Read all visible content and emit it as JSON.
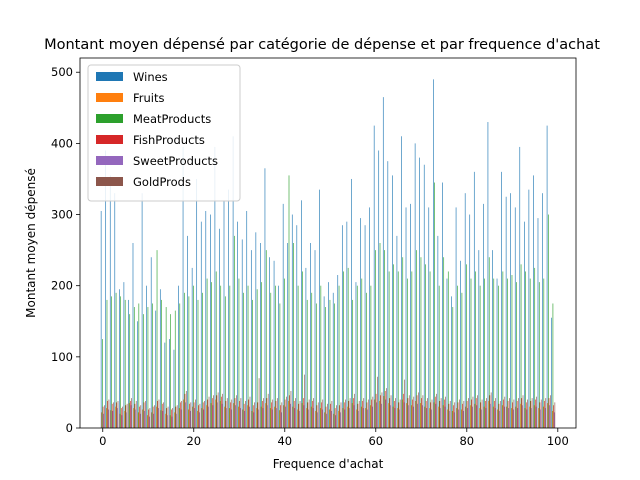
{
  "chart_data": {
    "type": "bar",
    "title": "Montant moyen dépensé par catégorie de dépense et par frequence d'achat",
    "xlabel": "Frequence d'achat",
    "ylabel": "Montant moyen dépensé",
    "xlim": [
      -5,
      104
    ],
    "ylim": [
      0,
      520
    ],
    "xticks": [
      0,
      20,
      40,
      60,
      80,
      100
    ],
    "yticks": [
      0,
      100,
      200,
      300,
      400,
      500
    ],
    "grid": false,
    "legend_position": "top-left",
    "x": [
      0,
      1,
      2,
      3,
      4,
      5,
      6,
      7,
      8,
      9,
      10,
      11,
      12,
      13,
      14,
      15,
      16,
      17,
      18,
      19,
      20,
      21,
      22,
      23,
      24,
      25,
      26,
      27,
      28,
      29,
      30,
      31,
      32,
      33,
      34,
      35,
      36,
      37,
      38,
      39,
      40,
      41,
      42,
      43,
      44,
      45,
      46,
      47,
      48,
      49,
      50,
      51,
      52,
      53,
      54,
      55,
      56,
      57,
      58,
      59,
      60,
      61,
      62,
      63,
      64,
      65,
      66,
      67,
      68,
      69,
      70,
      71,
      72,
      73,
      74,
      75,
      76,
      77,
      78,
      79,
      80,
      81,
      82,
      83,
      84,
      85,
      86,
      87,
      88,
      89,
      90,
      91,
      92,
      93,
      94,
      95,
      96,
      97,
      98,
      99
    ],
    "series": [
      {
        "name": "Wines",
        "color": "#1f77b4",
        "values": [
          305,
          390,
          355,
          330,
          195,
          205,
          180,
          260,
          150,
          330,
          200,
          240,
          165,
          195,
          120,
          125,
          110,
          200,
          395,
          270,
          225,
          350,
          290,
          305,
          300,
          395,
          280,
          320,
          335,
          410,
          290,
          265,
          305,
          250,
          275,
          260,
          365,
          240,
          235,
          200,
          315,
          260,
          300,
          285,
          320,
          225,
          260,
          250,
          335,
          185,
          205,
          190,
          215,
          285,
          290,
          350,
          205,
          295,
          285,
          310,
          425,
          390,
          465,
          375,
          355,
          270,
          410,
          310,
          315,
          400,
          380,
          370,
          310,
          490,
          270,
          345,
          210,
          185,
          310,
          235,
          330,
          300,
          360,
          250,
          315,
          430,
          250,
          210,
          360,
          325,
          330,
          310,
          395,
          290,
          335,
          355,
          295,
          330,
          425,
          155
        ]
      },
      {
        "name": "Fruits",
        "color": "#ff7f0e",
        "values": [
          22,
          28,
          25,
          30,
          20,
          24,
          35,
          28,
          22,
          26,
          18,
          22,
          30,
          25,
          20,
          18,
          22,
          28,
          40,
          26,
          30,
          24,
          28,
          32,
          35,
          40,
          38,
          30,
          28,
          35,
          30,
          26,
          32,
          24,
          28,
          30,
          35,
          28,
          30,
          25,
          32,
          38,
          30,
          26,
          35,
          28,
          30,
          24,
          28,
          22,
          26,
          20,
          24,
          28,
          30,
          35,
          26,
          30,
          28,
          32,
          40,
          38,
          45,
          35,
          30,
          28,
          40,
          35,
          32,
          38,
          35,
          30,
          28,
          36,
          30,
          32,
          26,
          24,
          28,
          26,
          30,
          32,
          34,
          28,
          30,
          38,
          30,
          26,
          32,
          30,
          28,
          30,
          34,
          28,
          30,
          32,
          28,
          30,
          35,
          24
        ]
      },
      {
        "name": "MeatProducts",
        "color": "#2ca02c",
        "values": [
          125,
          180,
          185,
          190,
          185,
          180,
          160,
          170,
          175,
          160,
          170,
          175,
          250,
          180,
          170,
          160,
          165,
          175,
          190,
          185,
          200,
          180,
          190,
          210,
          205,
          220,
          200,
          185,
          200,
          270,
          210,
          190,
          200,
          180,
          195,
          205,
          250,
          190,
          200,
          175,
          210,
          355,
          260,
          200,
          220,
          180,
          190,
          175,
          200,
          170,
          180,
          175,
          200,
          220,
          225,
          180,
          200,
          210,
          190,
          200,
          250,
          260,
          250,
          220,
          230,
          220,
          240,
          210,
          220,
          250,
          240,
          230,
          220,
          345,
          200,
          240,
          220,
          170,
          200,
          190,
          230,
          210,
          220,
          200,
          210,
          240,
          210,
          200,
          220,
          210,
          215,
          205,
          230,
          220,
          210,
          225,
          205,
          210,
          300,
          175
        ]
      },
      {
        "name": "FishProducts",
        "color": "#d62728",
        "values": [
          30,
          38,
          34,
          36,
          28,
          32,
          38,
          34,
          30,
          36,
          26,
          30,
          38,
          34,
          28,
          26,
          30,
          36,
          48,
          34,
          36,
          32,
          36,
          40,
          42,
          46,
          44,
          38,
          36,
          42,
          38,
          34,
          40,
          32,
          36,
          38,
          42,
          36,
          38,
          32,
          40,
          46,
          38,
          34,
          42,
          36,
          38,
          32,
          36,
          30,
          34,
          28,
          32,
          36,
          38,
          42,
          34,
          38,
          36,
          40,
          48,
          46,
          52,
          42,
          38,
          36,
          48,
          42,
          40,
          46,
          42,
          38,
          36,
          44,
          38,
          40,
          34,
          32,
          36,
          34,
          38,
          40,
          42,
          36,
          38,
          46,
          38,
          34,
          40,
          38,
          36,
          38,
          42,
          36,
          38,
          40,
          36,
          38,
          42,
          32
        ]
      },
      {
        "name": "SweetProducts",
        "color": "#9467bd",
        "values": [
          20,
          26,
          24,
          28,
          18,
          22,
          32,
          26,
          20,
          24,
          16,
          20,
          28,
          24,
          18,
          16,
          20,
          26,
          36,
          24,
          28,
          22,
          26,
          30,
          32,
          36,
          34,
          28,
          26,
          32,
          28,
          24,
          30,
          22,
          26,
          28,
          32,
          26,
          28,
          22,
          30,
          34,
          28,
          24,
          32,
          26,
          28,
          22,
          26,
          20,
          24,
          18,
          22,
          26,
          28,
          32,
          24,
          28,
          26,
          30,
          36,
          34,
          40,
          32,
          28,
          26,
          36,
          32,
          30,
          34,
          32,
          28,
          26,
          34,
          28,
          30,
          24,
          22,
          26,
          24,
          28,
          30,
          32,
          26,
          28,
          34,
          28,
          24,
          30,
          28,
          26,
          28,
          32,
          26,
          28,
          30,
          26,
          28,
          32,
          22
        ]
      },
      {
        "name": "GoldProds",
        "color": "#8c564b",
        "values": [
          32,
          40,
          36,
          38,
          30,
          34,
          42,
          38,
          32,
          38,
          28,
          32,
          40,
          36,
          30,
          28,
          32,
          38,
          52,
          36,
          40,
          34,
          38,
          44,
          46,
          50,
          48,
          42,
          40,
          46,
          42,
          38,
          44,
          36,
          70,
          42,
          48,
          40,
          42,
          36,
          44,
          52,
          42,
          38,
          75,
          40,
          42,
          36,
          40,
          34,
          38,
          32,
          36,
          40,
          42,
          48,
          38,
          42,
          40,
          44,
          72,
          50,
          56,
          46,
          42,
          40,
          68,
          46,
          44,
          50,
          46,
          42,
          40,
          48,
          42,
          44,
          38,
          36,
          40,
          38,
          42,
          44,
          46,
          40,
          42,
          50,
          42,
          38,
          44,
          42,
          40,
          42,
          46,
          40,
          42,
          44,
          40,
          42,
          46,
          36
        ]
      }
    ]
  }
}
